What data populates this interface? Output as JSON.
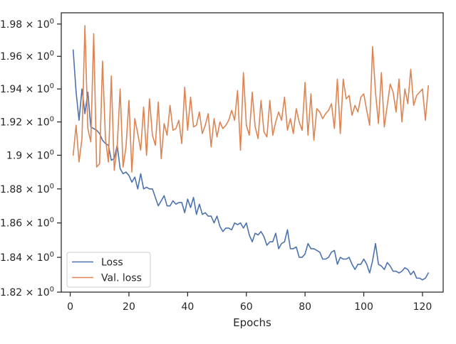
{
  "chart_data": {
    "type": "line",
    "title": "",
    "xlabel": "Epochs",
    "ylabel": "",
    "xlim": [
      -3.05,
      127.05
    ],
    "ylim": [
      1.82,
      1.987
    ],
    "yscale": "log",
    "x_ticks": [
      0,
      20,
      40,
      60,
      80,
      100,
      120
    ],
    "x_tick_labels": [
      "0",
      "20",
      "40",
      "60",
      "80",
      "100",
      "120"
    ],
    "y_ticks": [
      1.82,
      1.84,
      1.86,
      1.88,
      1.9,
      1.92,
      1.94,
      1.96,
      1.98
    ],
    "y_tick_labels": [
      {
        "base": "1.82 × 10",
        "exp": "0"
      },
      {
        "base": "1.84 × 10",
        "exp": "0"
      },
      {
        "base": "1.86 × 10",
        "exp": "0"
      },
      {
        "base": "1.88 × 10",
        "exp": "0"
      },
      {
        "base": "1.9 × 10",
        "exp": "0"
      },
      {
        "base": "1.92 × 10",
        "exp": "0"
      },
      {
        "base": "1.94 × 10",
        "exp": "0"
      },
      {
        "base": "1.96 × 10",
        "exp": "0"
      },
      {
        "base": "1.98 × 10",
        "exp": "0"
      }
    ],
    "grid": false,
    "legend_position": "lower-left",
    "x": [
      1,
      2,
      3,
      4,
      5,
      6,
      7,
      8,
      9,
      10,
      11,
      12,
      13,
      14,
      15,
      16,
      17,
      18,
      19,
      20,
      21,
      22,
      23,
      24,
      25,
      26,
      27,
      28,
      29,
      30,
      31,
      32,
      33,
      34,
      35,
      36,
      37,
      38,
      39,
      40,
      41,
      42,
      43,
      44,
      45,
      46,
      47,
      48,
      49,
      50,
      51,
      52,
      53,
      54,
      55,
      56,
      57,
      58,
      59,
      60,
      61,
      62,
      63,
      64,
      65,
      66,
      67,
      68,
      69,
      70,
      71,
      72,
      73,
      74,
      75,
      76,
      77,
      78,
      79,
      80,
      81,
      82,
      83,
      84,
      85,
      86,
      87,
      88,
      89,
      90,
      91,
      92,
      93,
      94,
      95,
      96,
      97,
      98,
      99,
      100,
      101,
      102,
      103,
      104,
      105,
      106,
      107,
      108,
      109,
      110,
      111,
      112,
      113,
      114,
      115,
      116,
      117,
      118,
      119,
      120,
      121,
      122
    ],
    "series": [
      {
        "name": "Loss",
        "color": "#4c72b0",
        "values": [
          1.964,
          1.938,
          1.921,
          1.94,
          1.925,
          1.938,
          1.917,
          1.916,
          1.915,
          1.913,
          1.909,
          1.907,
          1.906,
          1.897,
          1.898,
          1.906,
          1.892,
          1.889,
          1.89,
          1.888,
          1.884,
          1.887,
          1.88,
          1.889,
          1.88,
          1.881,
          1.88,
          1.88,
          1.875,
          1.87,
          1.873,
          1.876,
          1.87,
          1.87,
          1.873,
          1.871,
          1.872,
          1.872,
          1.866,
          1.874,
          1.869,
          1.875,
          1.865,
          1.871,
          1.865,
          1.866,
          1.864,
          1.864,
          1.86,
          1.864,
          1.858,
          1.855,
          1.857,
          1.857,
          1.856,
          1.86,
          1.859,
          1.86,
          1.857,
          1.86,
          1.853,
          1.849,
          1.854,
          1.853,
          1.855,
          1.852,
          1.847,
          1.849,
          1.849,
          1.854,
          1.845,
          1.848,
          1.849,
          1.856,
          1.845,
          1.845,
          1.846,
          1.84,
          1.84,
          1.842,
          1.848,
          1.845,
          1.845,
          1.844,
          1.843,
          1.839,
          1.839,
          1.84,
          1.843,
          1.844,
          1.836,
          1.84,
          1.839,
          1.839,
          1.84,
          1.836,
          1.833,
          1.836,
          1.836,
          1.839,
          1.836,
          1.831,
          1.838,
          1.848,
          1.836,
          1.835,
          1.833,
          1.837,
          1.835,
          1.832,
          1.832,
          1.831,
          1.832,
          1.834,
          1.833,
          1.83,
          1.832,
          1.828,
          1.828,
          1.827,
          1.828,
          1.831
        ]
      },
      {
        "name": "Val. loss",
        "color": "#dd8452",
        "values": [
          1.9,
          1.918,
          1.896,
          1.91,
          1.979,
          1.916,
          1.908,
          1.974,
          1.893,
          1.895,
          1.957,
          1.91,
          1.896,
          1.948,
          1.891,
          1.905,
          1.94,
          1.893,
          1.905,
          1.933,
          1.89,
          1.922,
          1.913,
          1.903,
          1.929,
          1.9,
          1.934,
          1.912,
          1.906,
          1.932,
          1.898,
          1.919,
          1.912,
          1.93,
          1.915,
          1.916,
          1.921,
          1.907,
          1.941,
          1.915,
          1.935,
          1.917,
          1.918,
          1.926,
          1.913,
          1.918,
          1.925,
          1.905,
          1.922,
          1.911,
          1.92,
          1.916,
          1.918,
          1.921,
          1.927,
          1.921,
          1.939,
          1.903,
          1.95,
          1.918,
          1.912,
          1.938,
          1.917,
          1.91,
          1.933,
          1.914,
          1.911,
          1.933,
          1.912,
          1.92,
          1.926,
          1.921,
          1.935,
          1.915,
          1.922,
          1.913,
          1.928,
          1.92,
          1.915,
          1.944,
          1.912,
          1.937,
          1.909,
          1.928,
          1.926,
          1.922,
          1.925,
          1.927,
          1.931,
          1.916,
          1.946,
          1.913,
          1.946,
          1.934,
          1.936,
          1.924,
          1.93,
          1.926,
          1.935,
          1.937,
          1.927,
          1.918,
          1.966,
          1.938,
          1.919,
          1.95,
          1.917,
          1.93,
          1.943,
          1.938,
          1.926,
          1.946,
          1.92,
          1.94,
          1.931,
          1.952,
          1.93,
          1.936,
          1.938,
          1.94,
          1.921,
          1.942
        ]
      }
    ]
  }
}
